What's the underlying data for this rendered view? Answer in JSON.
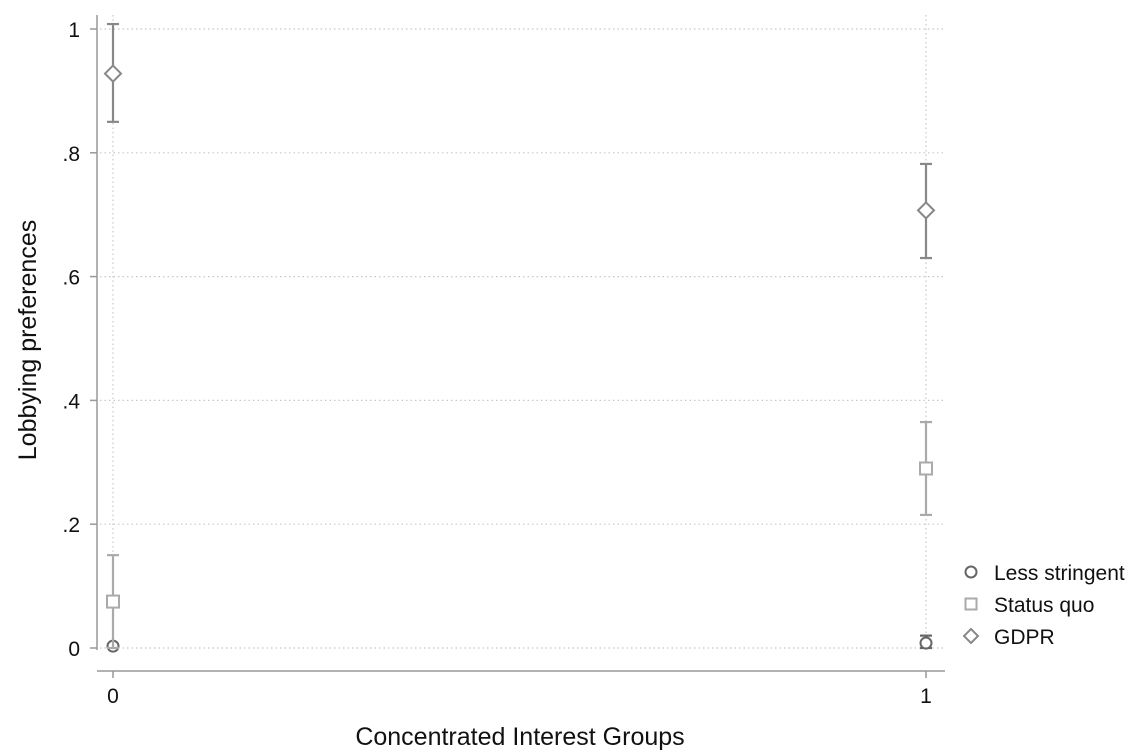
{
  "chart_data": {
    "type": "scatter",
    "xlabel": "Concentrated Interest Groups",
    "ylabel": "Lobbying preferences",
    "x_ticks": [
      0,
      1
    ],
    "x_tick_labels": [
      "0",
      "1"
    ],
    "y_ticks": [
      0,
      0.2,
      0.4,
      0.6,
      0.8,
      1
    ],
    "y_tick_labels": [
      "0",
      ".2",
      ".4",
      ".6",
      ".8",
      "1"
    ],
    "xlim": [
      0,
      1
    ],
    "ylim": [
      0,
      1
    ],
    "grid": true,
    "legend_position": "right",
    "series": [
      {
        "name": "Less stringent",
        "marker": "circle",
        "color": "#666666",
        "points": [
          {
            "x": 0,
            "y": 0.003,
            "ci_low": 0.0,
            "ci_high": 0.006
          },
          {
            "x": 1,
            "y": 0.008,
            "ci_low": 0.0,
            "ci_high": 0.02
          }
        ]
      },
      {
        "name": "Status quo",
        "marker": "square",
        "color": "#aaaaaa",
        "points": [
          {
            "x": 0,
            "y": 0.075,
            "ci_low": 0.0,
            "ci_high": 0.15
          },
          {
            "x": 1,
            "y": 0.29,
            "ci_low": 0.215,
            "ci_high": 0.365
          }
        ]
      },
      {
        "name": "GDPR",
        "marker": "diamond",
        "color": "#888888",
        "points": [
          {
            "x": 0,
            "y": 0.928,
            "ci_low": 0.85,
            "ci_high": 1.008
          },
          {
            "x": 1,
            "y": 0.707,
            "ci_low": 0.63,
            "ci_high": 0.782
          }
        ]
      }
    ]
  }
}
